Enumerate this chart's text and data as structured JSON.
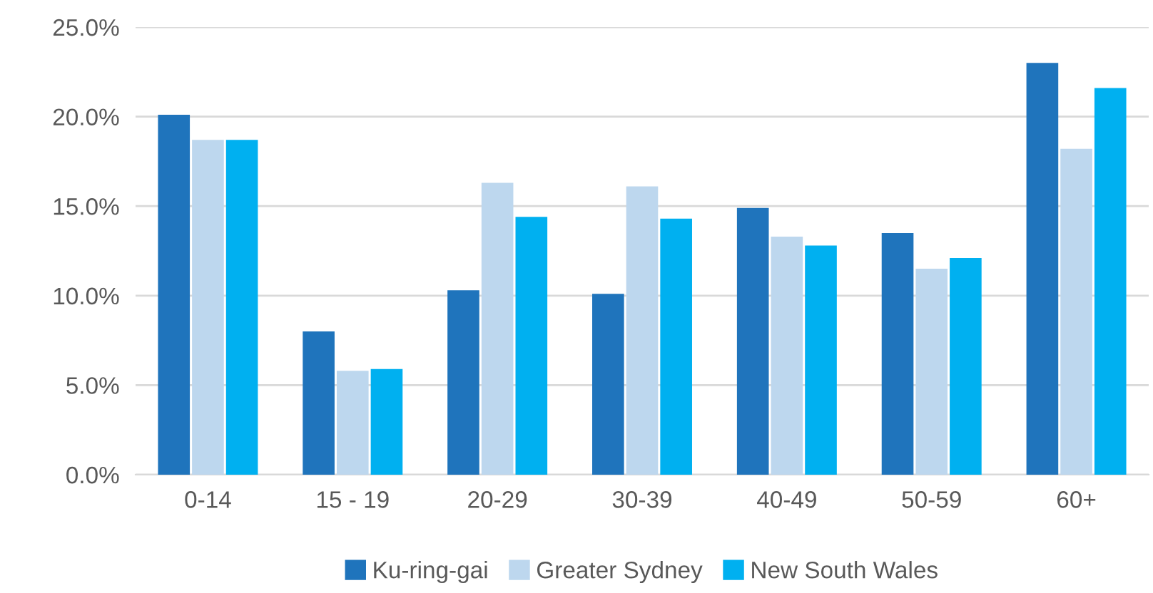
{
  "chart_data": {
    "type": "bar",
    "categories": [
      "0-14",
      "15 - 19",
      "20-29",
      "30-39",
      "40-49",
      "50-59",
      "60+"
    ],
    "series": [
      {
        "name": "Ku-ring-gai",
        "color": "#1f74bc",
        "values": [
          20.1,
          8.0,
          10.3,
          10.1,
          14.9,
          13.5,
          23.0
        ]
      },
      {
        "name": "Greater Sydney",
        "color": "#bdd7ee",
        "values": [
          18.7,
          5.8,
          16.3,
          16.1,
          13.3,
          11.5,
          18.2
        ]
      },
      {
        "name": "New South Wales",
        "color": "#00b0f0",
        "values": [
          18.7,
          5.9,
          14.4,
          14.3,
          12.8,
          12.1,
          21.6
        ]
      }
    ],
    "ylim": [
      0,
      25
    ],
    "yticks": [
      {
        "value": 0,
        "label": "0.0%"
      },
      {
        "value": 5,
        "label": "5.0%"
      },
      {
        "value": 10,
        "label": "10.0%"
      },
      {
        "value": 15,
        "label": "15.0%"
      },
      {
        "value": 20,
        "label": "20.0%"
      },
      {
        "value": 25,
        "label": "25.0%"
      }
    ],
    "grid": "y",
    "legend": "bottom"
  }
}
